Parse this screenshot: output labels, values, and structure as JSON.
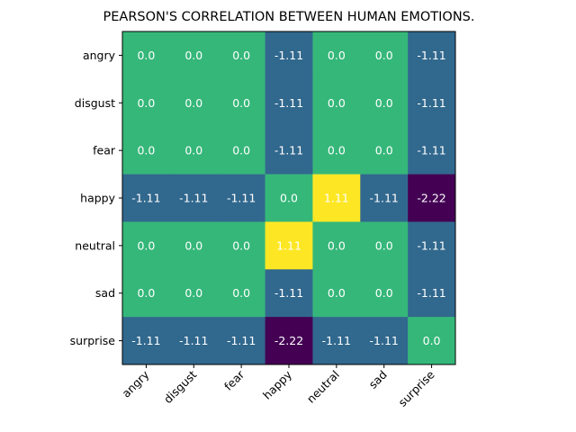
{
  "chart_data": {
    "type": "heatmap",
    "title": "PEARSON'S CORRELATION BETWEEN HUMAN EMOTIONS.",
    "x_categories": [
      "angry",
      "disgust",
      "fear",
      "happy",
      "neutral",
      "sad",
      "surprise"
    ],
    "y_categories": [
      "angry",
      "disgust",
      "fear",
      "happy",
      "neutral",
      "sad",
      "surprise"
    ],
    "values": [
      [
        0.0,
        0.0,
        0.0,
        -1.11,
        0.0,
        0.0,
        -1.11
      ],
      [
        0.0,
        0.0,
        0.0,
        -1.11,
        0.0,
        0.0,
        -1.11
      ],
      [
        0.0,
        0.0,
        0.0,
        -1.11,
        0.0,
        0.0,
        -1.11
      ],
      [
        -1.11,
        -1.11,
        -1.11,
        0.0,
        1.11,
        -1.11,
        -2.22
      ],
      [
        0.0,
        0.0,
        0.0,
        1.11,
        0.0,
        0.0,
        -1.11
      ],
      [
        0.0,
        0.0,
        0.0,
        -1.11,
        0.0,
        0.0,
        -1.11
      ],
      [
        -1.11,
        -1.11,
        -1.11,
        -2.22,
        -1.11,
        -1.11,
        0.0
      ]
    ],
    "value_labels": [
      [
        "0.0",
        "0.0",
        "0.0",
        "-1.11",
        "0.0",
        "0.0",
        "-1.11"
      ],
      [
        "0.0",
        "0.0",
        "0.0",
        "-1.11",
        "0.0",
        "0.0",
        "-1.11"
      ],
      [
        "0.0",
        "0.0",
        "0.0",
        "-1.11",
        "0.0",
        "0.0",
        "-1.11"
      ],
      [
        "-1.11",
        "-1.11",
        "-1.11",
        "0.0",
        "1.11",
        "-1.11",
        "-2.22"
      ],
      [
        "0.0",
        "0.0",
        "0.0",
        "1.11",
        "0.0",
        "0.0",
        "-1.11"
      ],
      [
        "0.0",
        "0.0",
        "0.0",
        "-1.11",
        "0.0",
        "0.0",
        "-1.11"
      ],
      [
        "-1.11",
        "-1.11",
        "-1.11",
        "-2.22",
        "-1.11",
        "-1.11",
        "0.0"
      ]
    ],
    "colormap": "viridis",
    "value_range": [
      -2.22,
      1.11
    ],
    "color_stops": {
      "-2.22": "#440154",
      "-1.11": "#31688e",
      "0.0": "#35b779",
      "1.11": "#fde725"
    },
    "x_tick_rotation_deg": 45,
    "grid": false,
    "legend": "none"
  }
}
